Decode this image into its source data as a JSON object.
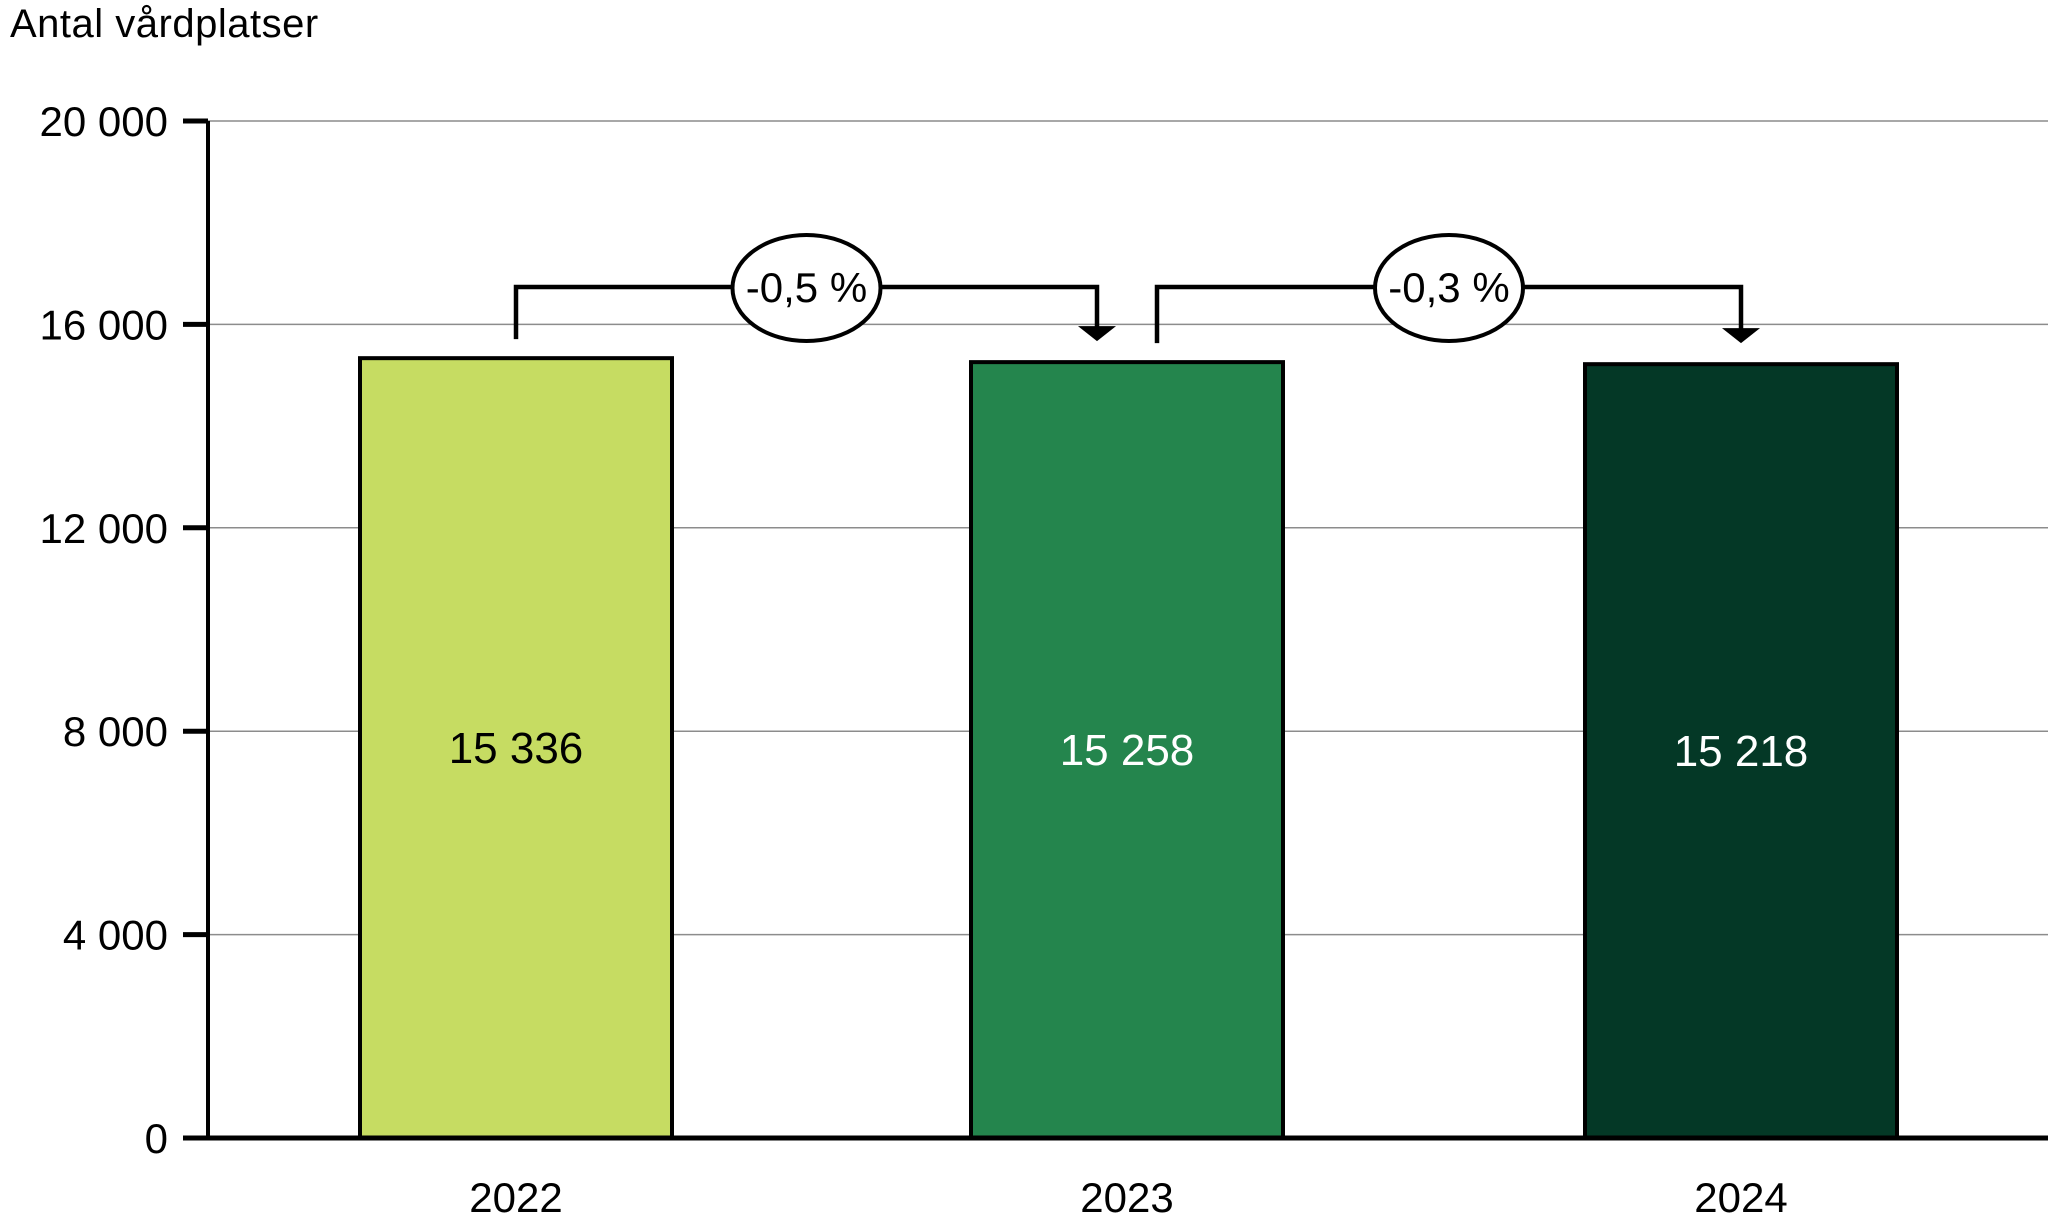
{
  "title": "Antal vårdplatser",
  "colors": {
    "background": "#FFFFFF",
    "axis": "#000000",
    "gridline": "#8C8C8C",
    "annotation_fill": "#FFFFFF",
    "annotation_stroke": "#000000",
    "text": "#000000"
  },
  "chart_data": {
    "type": "bar",
    "title": "Antal vårdplatser",
    "ylabel": "Antal vårdplatser",
    "xlabel": "",
    "categories": [
      "2022",
      "2023",
      "2024"
    ],
    "values": [
      15336,
      15258,
      15218
    ],
    "value_labels": [
      "15 336",
      "15 258",
      "15 218"
    ],
    "bar_colors": [
      "#C6DC62",
      "#24854D",
      "#043826"
    ],
    "value_label_colors": [
      "#000000",
      "#FFFFFF",
      "#FFFFFF"
    ],
    "ylim": [
      0,
      20000
    ],
    "yticks": [
      0,
      4000,
      8000,
      12000,
      16000,
      20000
    ],
    "ytick_labels": [
      "0",
      "4 000",
      "8 000",
      "12 000",
      "16 000",
      "20 000"
    ],
    "grid": true,
    "legend": false,
    "annotations": [
      {
        "label": "-0,5 %",
        "from_category": "2022",
        "to_category": "2023",
        "from_index": 0,
        "to_index": 1
      },
      {
        "label": "-0,3 %",
        "from_category": "2023",
        "to_category": "2024",
        "from_index": 1,
        "to_index": 2
      }
    ]
  }
}
